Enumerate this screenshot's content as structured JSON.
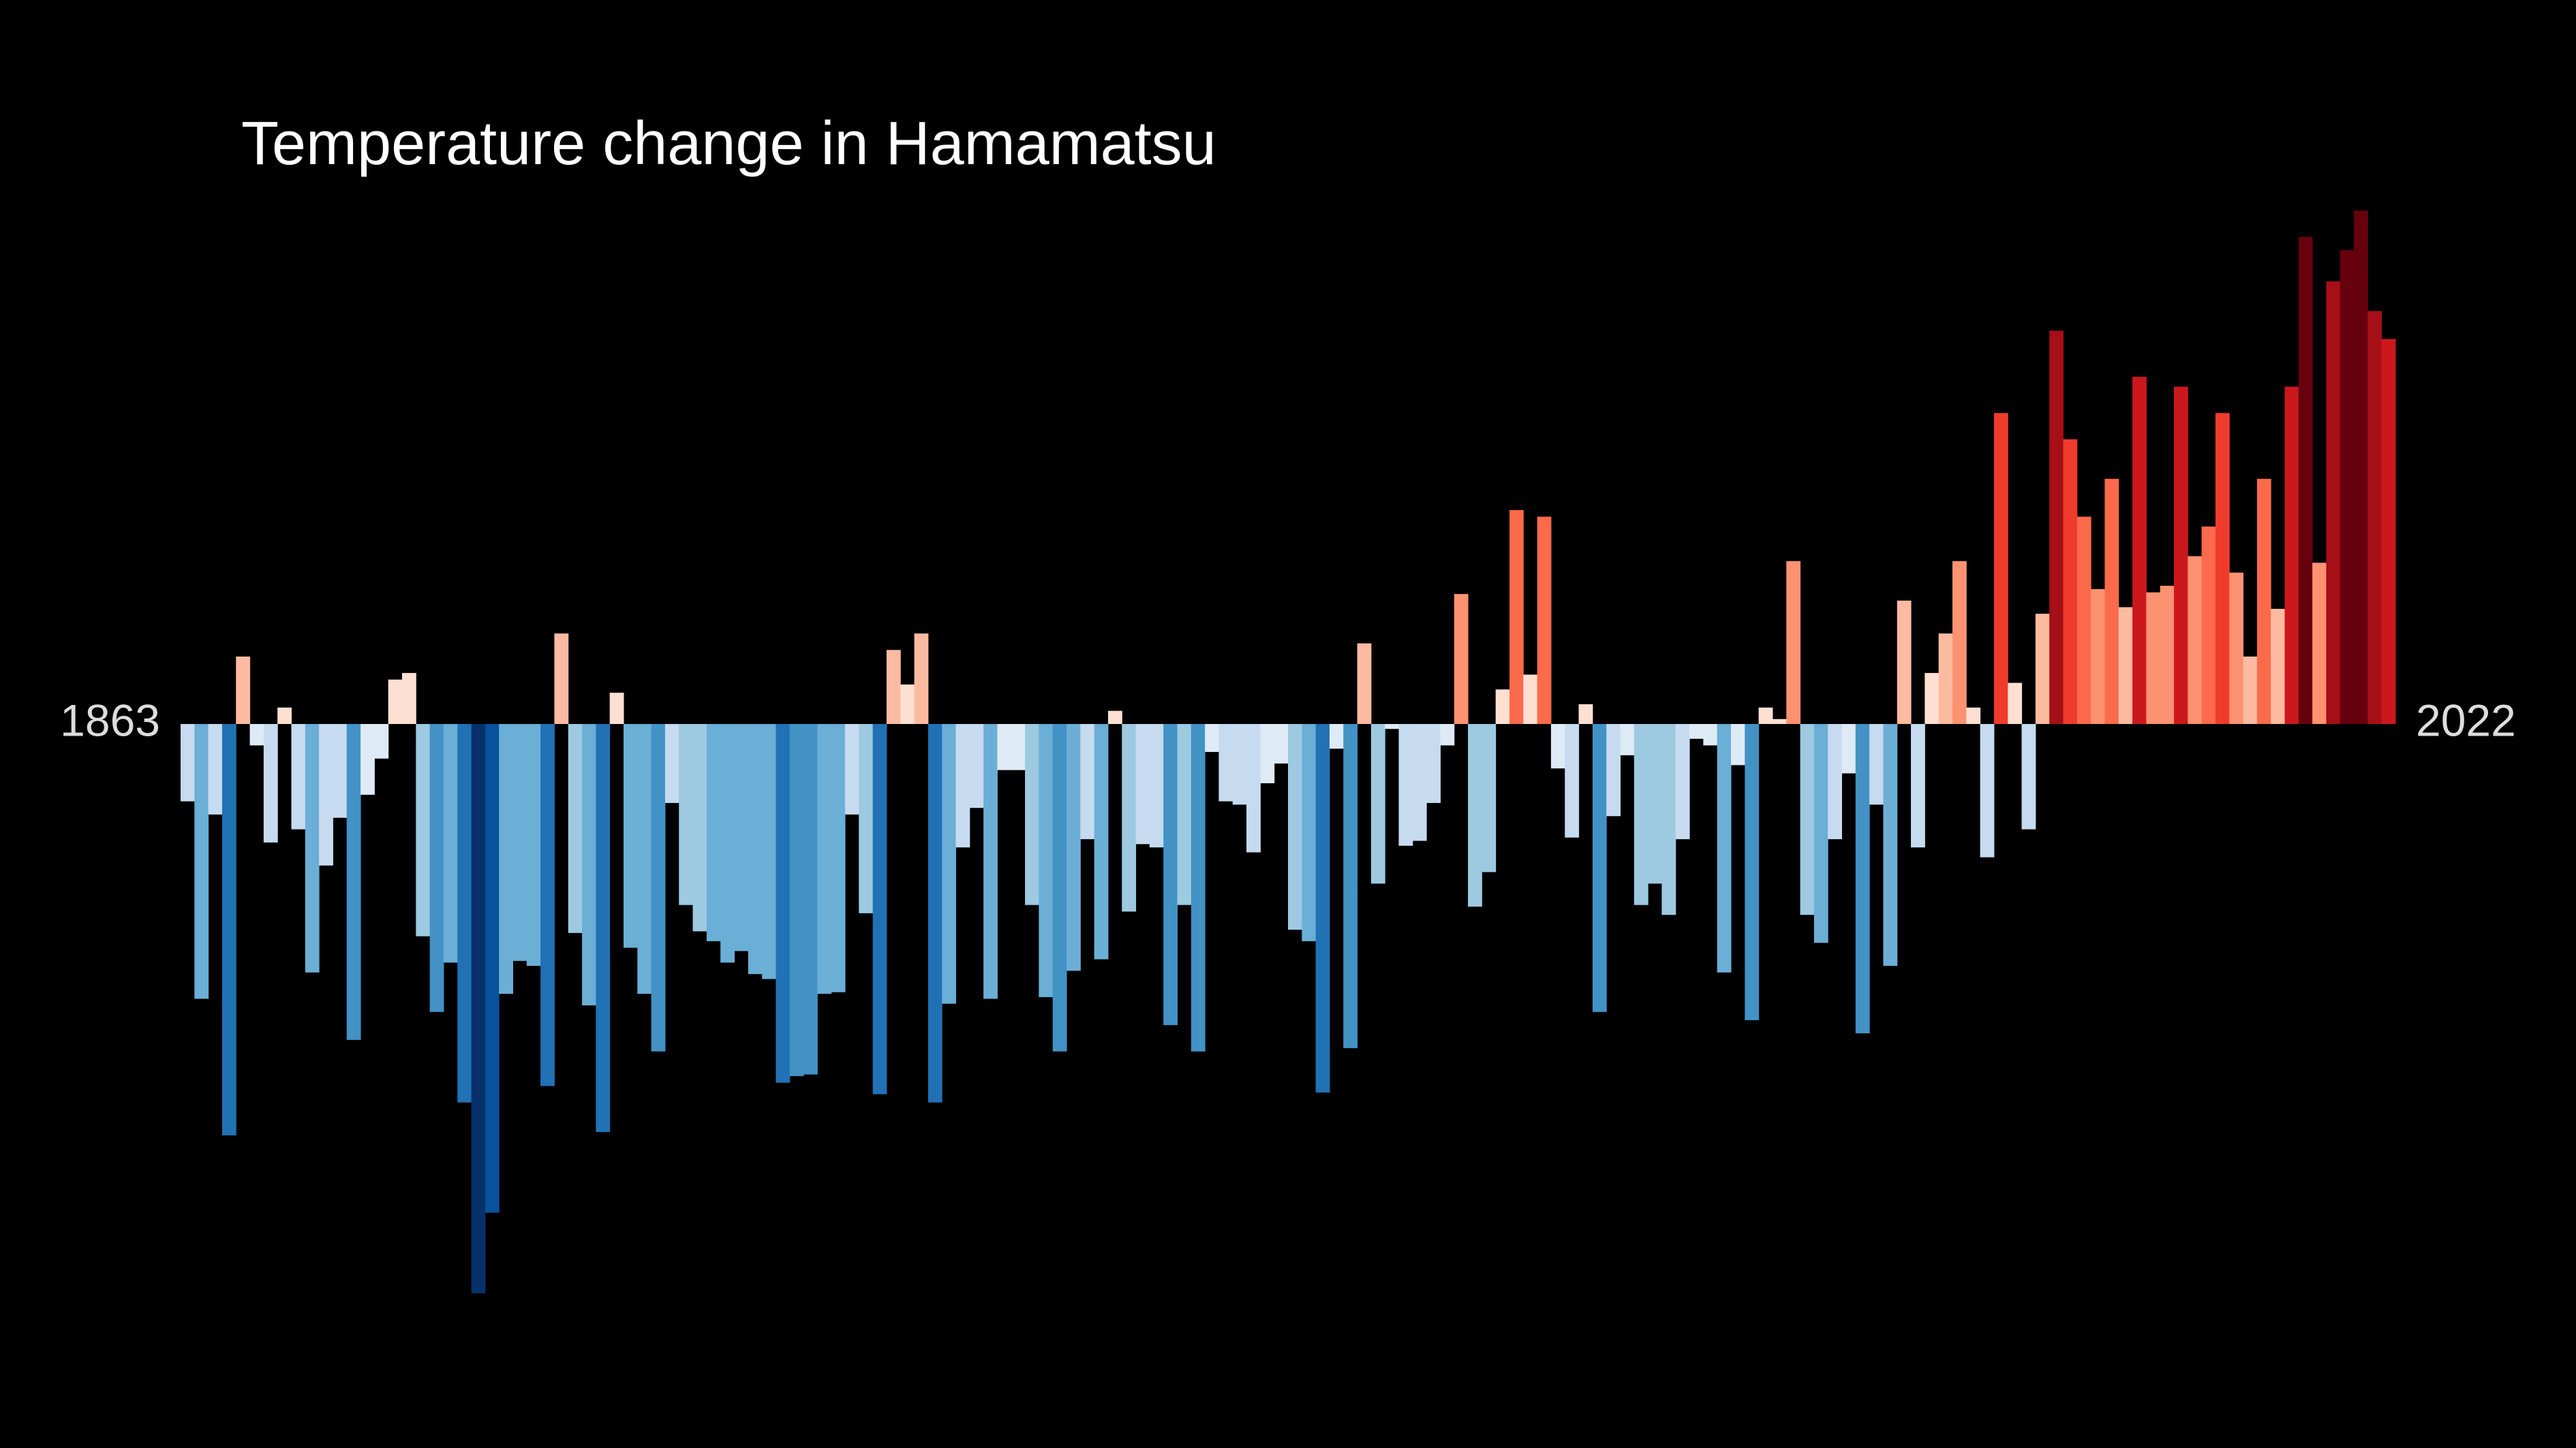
{
  "chart_data": {
    "type": "bar",
    "title": "Temperature change in Hamamatsu",
    "categories": [
      "1863",
      null,
      null,
      null,
      null,
      null,
      null,
      null,
      null,
      null,
      null,
      null,
      null,
      null,
      null,
      null,
      null,
      null,
      null,
      null,
      null,
      null,
      null,
      null,
      null,
      null,
      null,
      null,
      null,
      null,
      null,
      null,
      null,
      null,
      null,
      null,
      null,
      null,
      null,
      null,
      null,
      null,
      null,
      null,
      null,
      null,
      null,
      null,
      null,
      null,
      null,
      null,
      null,
      null,
      null,
      null,
      null,
      null,
      null,
      null,
      null,
      null,
      null,
      null,
      null,
      null,
      null,
      null,
      null,
      null,
      null,
      null,
      null,
      null,
      null,
      null,
      null,
      null,
      null,
      null,
      null,
      null,
      null,
      null,
      null,
      null,
      null,
      null,
      null,
      null,
      null,
      null,
      null,
      null,
      null,
      null,
      null,
      null,
      null,
      null,
      null,
      null,
      null,
      null,
      null,
      null,
      null,
      null,
      null,
      null,
      null,
      null,
      null,
      null,
      null,
      null,
      null,
      null,
      null,
      null,
      null,
      null,
      null,
      null,
      null,
      null,
      null,
      null,
      null,
      null,
      null,
      null,
      null,
      null,
      null,
      null,
      null,
      null,
      null,
      null,
      null,
      null,
      null,
      null,
      null,
      null,
      null,
      null,
      null,
      null,
      null,
      null,
      null,
      null,
      null,
      null,
      null,
      null,
      null,
      "2022"
    ],
    "values": [
      -0.235,
      -0.835,
      -0.275,
      -1.25,
      0.205,
      -0.065,
      -0.36,
      0.05,
      -0.32,
      -0.755,
      -0.43,
      -0.285,
      -0.96,
      -0.215,
      -0.105,
      0.135,
      0.155,
      -0.645,
      -0.875,
      -0.725,
      -1.15,
      -1.73,
      -1.485,
      -0.82,
      -0.72,
      -0.735,
      -1.1,
      0.275,
      -0.635,
      -0.855,
      -1.24,
      0.095,
      -0.68,
      -0.82,
      -0.995,
      -0.24,
      -0.55,
      -0.63,
      -0.66,
      -0.725,
      -0.69,
      -0.76,
      -0.775,
      -1.09,
      -1.07,
      -1.065,
      -0.82,
      -0.815,
      -0.275,
      -0.575,
      -1.125,
      0.225,
      0.12,
      0.275,
      -1.15,
      -0.85,
      -0.375,
      -0.255,
      -0.835,
      -0.14,
      -0.14,
      -0.55,
      -0.83,
      -0.995,
      -0.75,
      -0.35,
      -0.715,
      0.04,
      -0.57,
      -0.365,
      -0.375,
      -0.915,
      -0.55,
      -0.995,
      -0.085,
      -0.235,
      -0.245,
      -0.39,
      -0.18,
      -0.12,
      -0.625,
      -0.66,
      -1.12,
      -0.075,
      -0.985,
      0.245,
      -0.485,
      -0.015,
      -0.37,
      -0.355,
      -0.24,
      -0.065,
      0.395,
      -0.555,
      -0.45,
      0.105,
      0.65,
      0.15,
      0.63,
      -0.135,
      -0.345,
      0.06,
      -0.875,
      -0.28,
      -0.095,
      -0.55,
      -0.485,
      -0.58,
      -0.35,
      -0.045,
      -0.065,
      -0.755,
      -0.125,
      -0.9,
      0.05,
      0.015,
      0.495,
      -0.58,
      -0.665,
      -0.35,
      -0.15,
      -0.94,
      -0.245,
      -0.735,
      0.375,
      -0.375,
      0.155,
      0.275,
      0.495,
      0.05,
      -0.405,
      0.945,
      0.125,
      -0.32,
      0.335,
      1.195,
      0.865,
      0.63,
      0.41,
      0.745,
      0.355,
      1.055,
      0.4,
      0.42,
      1.025,
      0.51,
      0.6,
      0.945,
      0.46,
      0.205,
      0.745,
      0.35,
      1.025,
      1.48,
      0.49,
      1.345,
      1.44,
      1.56,
      1.255,
      1.17
    ],
    "colors": [
      "#08306b",
      "#08519c",
      "#2171b5",
      "#4292c6",
      "#6baed6",
      "#9ecae1",
      "#c6dbef",
      "#deebf7",
      "#fee0d2",
      "#fcbba1",
      "#fc9272",
      "#fb6a4a",
      "#ef3b2c",
      "#cb181d",
      "#a50f15",
      "#67000d"
    ],
    "ylim": [
      -2.2,
      2.2
    ]
  }
}
